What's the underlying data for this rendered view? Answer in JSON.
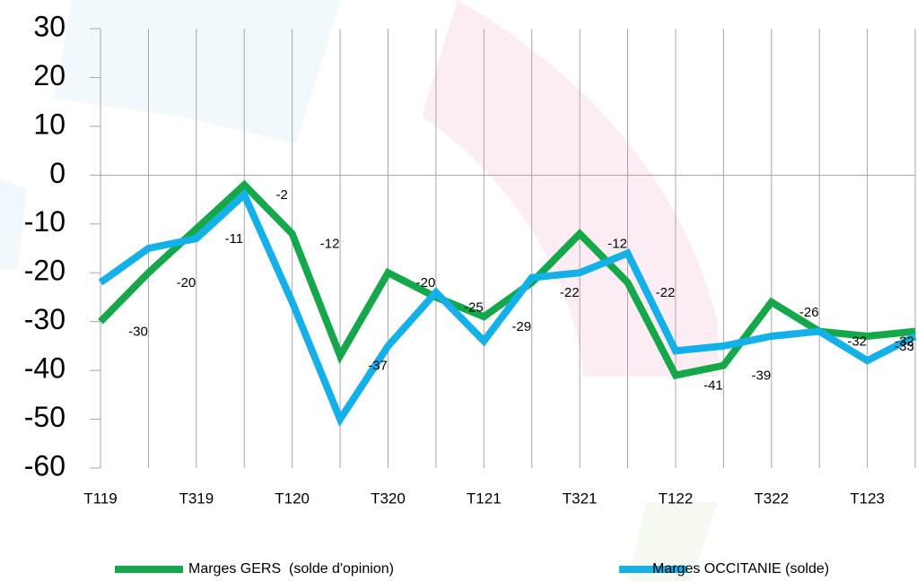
{
  "chart_data": {
    "type": "line",
    "categories": [
      "T119",
      null,
      "T319",
      null,
      "T120",
      null,
      "T320",
      null,
      "T121",
      null,
      "T321",
      null,
      "T122",
      null,
      "T322",
      null,
      "T123",
      null
    ],
    "series": [
      {
        "name": "Marges GERS  (solde d'opinion)",
        "color": "#15a84a",
        "values": [
          -30,
          -20,
          -11,
          -2,
          -12,
          -37,
          -20,
          -25,
          -29,
          -22,
          -12,
          -22,
          -41,
          -39,
          -26,
          -32,
          -33,
          -32
        ]
      },
      {
        "name": "Marges OCCITANIE (solde)",
        "color": "#14b0ea",
        "values": [
          -22,
          -15,
          -13,
          -4,
          -26,
          -50,
          -35,
          -24,
          -34,
          -21,
          -20,
          -16,
          -36,
          -35,
          -33,
          -32,
          -38,
          -33
        ]
      }
    ],
    "ylim": [
      -60,
      30
    ],
    "yticks": [
      -60,
      -50,
      -40,
      -30,
      -20,
      -10,
      0,
      10,
      20,
      30
    ],
    "grid": true
  }
}
